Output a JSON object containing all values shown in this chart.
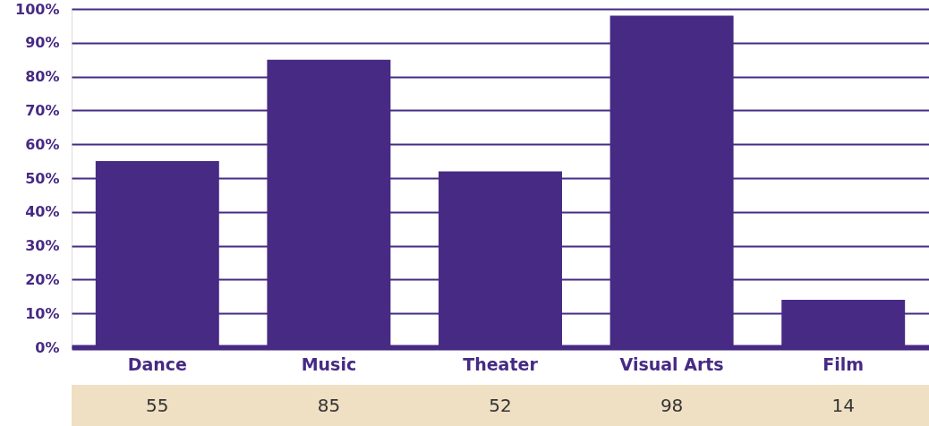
{
  "chart_data": {
    "type": "bar",
    "categories": [
      "Dance",
      "Music",
      "Theater",
      "Visual Arts",
      "Film"
    ],
    "values": [
      55,
      85,
      52,
      98,
      14
    ],
    "color": "#472a84",
    "ylim": [
      0,
      100
    ],
    "yticks": [
      {
        "value": 0,
        "label": "0%"
      },
      {
        "value": 10,
        "label": "10%"
      },
      {
        "value": 20,
        "label": "20%"
      },
      {
        "value": 30,
        "label": "30%"
      },
      {
        "value": 40,
        "label": "40%"
      },
      {
        "value": 50,
        "label": "50%"
      },
      {
        "value": 60,
        "label": "60%"
      },
      {
        "value": 70,
        "label": "70%"
      },
      {
        "value": 80,
        "label": "80%"
      },
      {
        "value": 90,
        "label": "90%"
      },
      {
        "value": 100,
        "label": "100%"
      }
    ],
    "grid": "y",
    "data_labels": true
  }
}
